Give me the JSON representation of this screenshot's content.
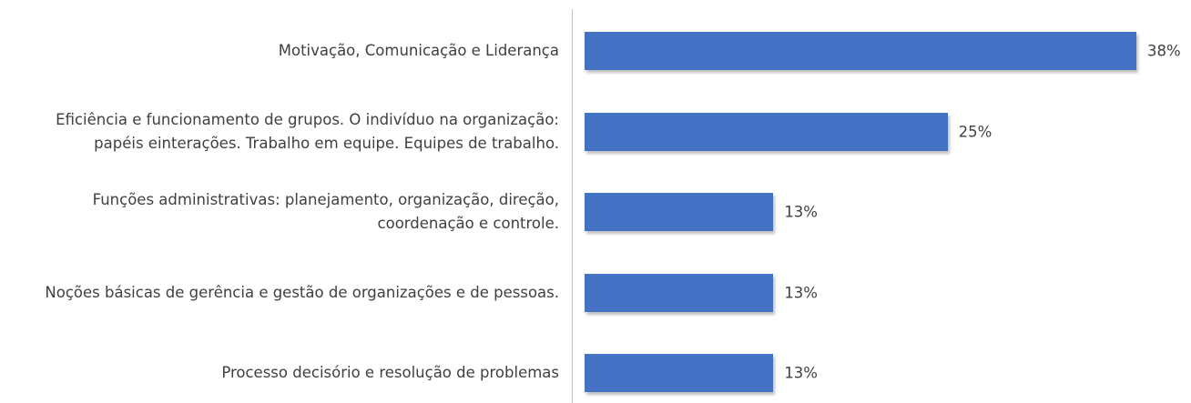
{
  "chart_data": {
    "type": "barh",
    "categories": [
      "Motivação, Comunicação e Liderança",
      "Eficiência e funcionamento de grupos. O indivíduo na organização: papéis einterações. Trabalho em equipe. Equipes de trabalho.",
      "Funções administrativas: planejamento, organização, direção, coordenação e controle.",
      "Noções básicas de gerência e gestão de organizações e de pessoas.",
      "Processo decisório e resolução de problemas"
    ],
    "values": [
      38,
      25,
      13,
      13,
      13
    ],
    "value_labels": [
      "38%",
      "25%",
      "13%",
      "13%",
      "13%"
    ],
    "color": "#4472c4"
  }
}
